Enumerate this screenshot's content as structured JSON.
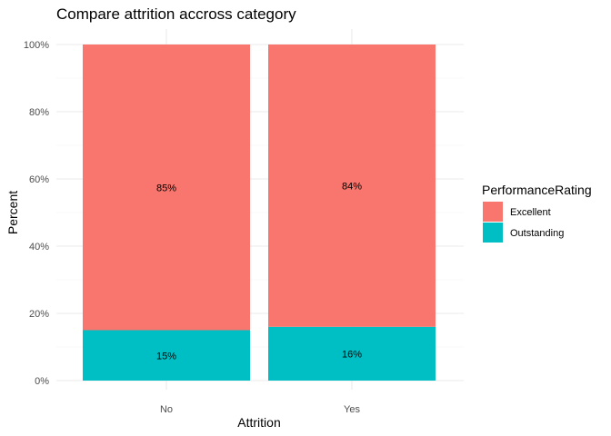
{
  "chart_data": {
    "type": "bar",
    "stacked": true,
    "title": "Compare attrition accross category",
    "xlabel": "Attrition",
    "ylabel": "Percent",
    "categories": [
      "No",
      "Yes"
    ],
    "ylim": [
      0,
      1
    ],
    "yticks": [
      "0%",
      "20%",
      "40%",
      "60%",
      "80%",
      "100%"
    ],
    "grid": true,
    "legend": {
      "title": "PerformanceRating",
      "placement": "right"
    },
    "series": [
      {
        "name": "Excellent",
        "color": "#F8766D",
        "values": [
          0.85,
          0.84
        ],
        "labels": [
          "85%",
          "84%"
        ]
      },
      {
        "name": "Outstanding",
        "color": "#00BFC4",
        "values": [
          0.15,
          0.16
        ],
        "labels": [
          "15%",
          "16%"
        ]
      }
    ]
  }
}
